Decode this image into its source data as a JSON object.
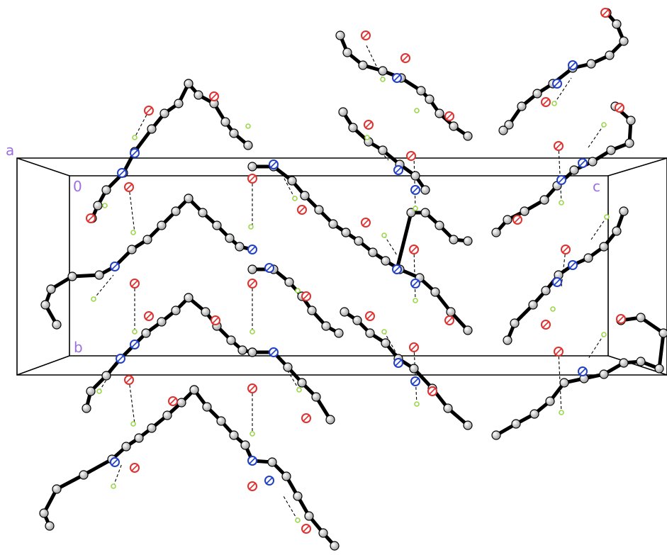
{
  "axis_labels": {
    "a": "a",
    "origin": "0",
    "b": "b",
    "c": "c"
  },
  "colors": {
    "carbon": "#cfcfcf",
    "oxygen": "#e03030",
    "nitrogen": "#2040c8",
    "hydrogen": "#9ad84a",
    "bond": "#000000",
    "axis_label": "#9b6fe0"
  }
}
